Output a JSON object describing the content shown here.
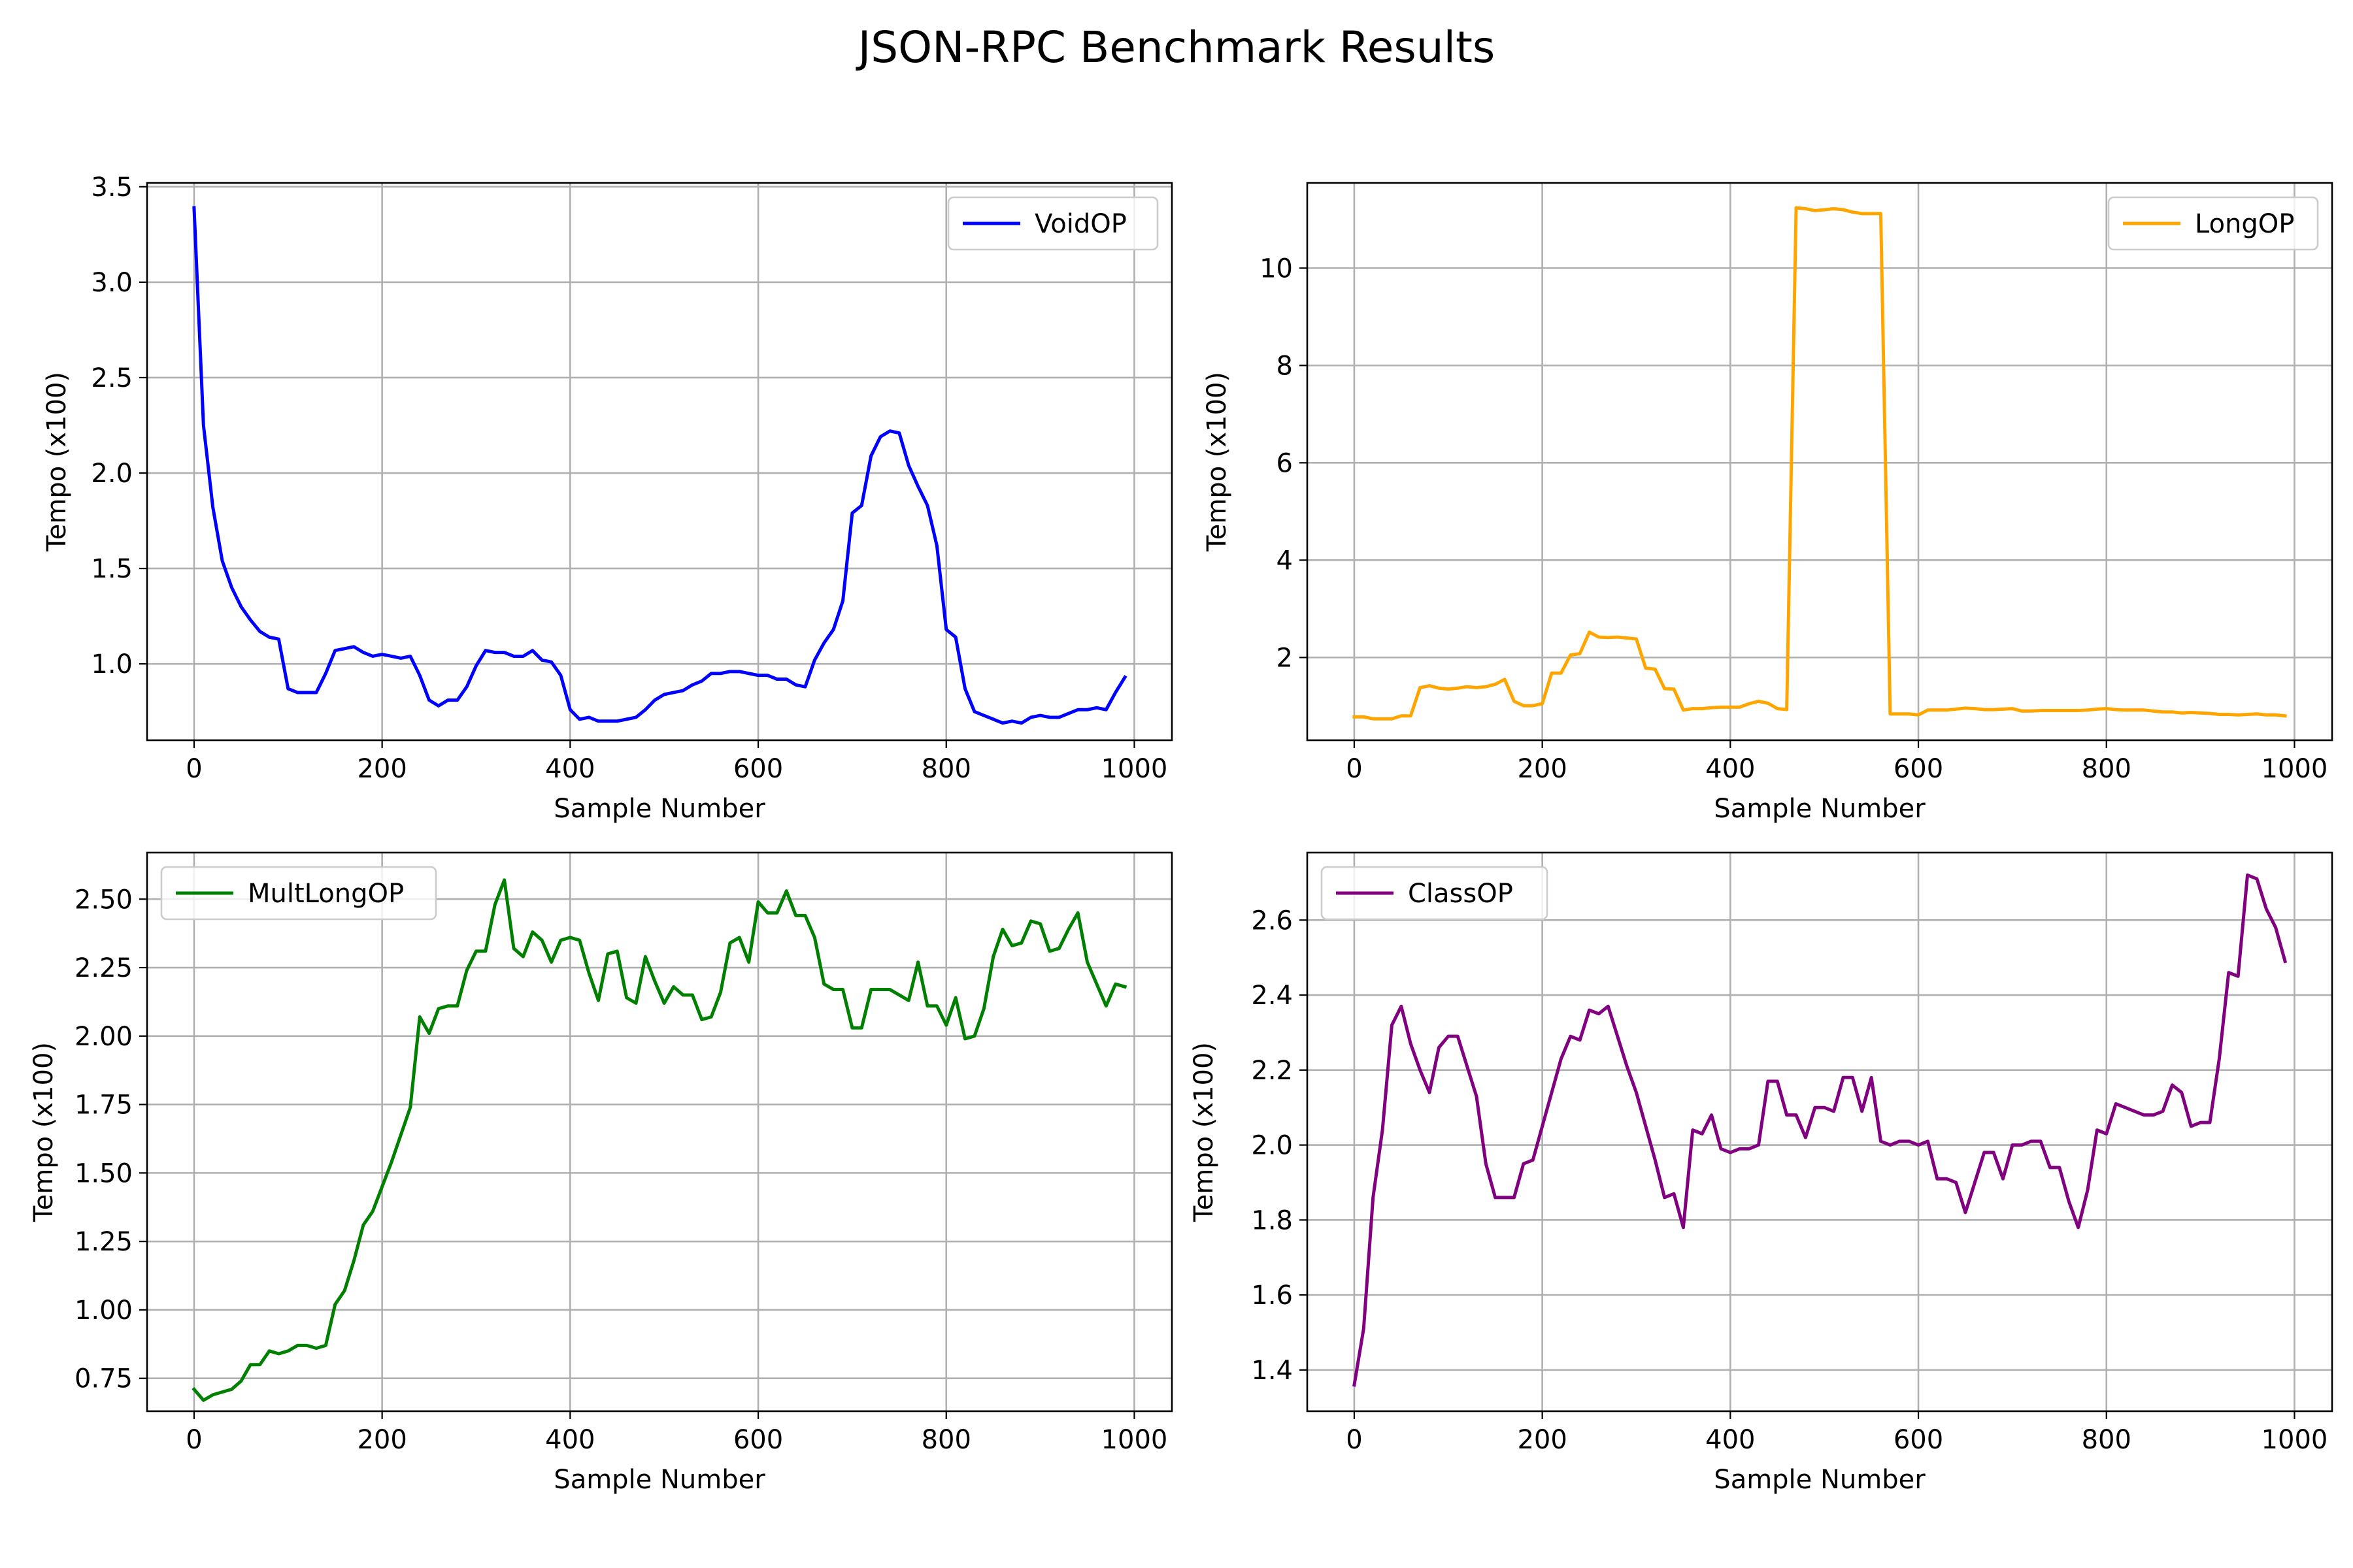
{
  "figure": {
    "title": "JSON-RPC Benchmark Results"
  },
  "chart_data": [
    {
      "type": "line",
      "xlabel": "Sample Number",
      "ylabel": "Tempo (x100)",
      "xlim": [
        -50,
        1040
      ],
      "ylim": [
        0.6,
        3.52
      ],
      "xticks": [
        0,
        200,
        400,
        600,
        800,
        1000
      ],
      "xtick_labels": [
        "0",
        "200",
        "400",
        "600",
        "800",
        "1000"
      ],
      "yticks": [
        1.0,
        1.5,
        2.0,
        2.5,
        3.0,
        3.5
      ],
      "ytick_labels": [
        "1.0",
        "1.5",
        "2.0",
        "2.5",
        "3.0",
        "3.5"
      ],
      "grid": true,
      "legend": "upper right",
      "series": [
        {
          "name": "VoidOP",
          "color": "#0000ff",
          "x": [
            0,
            10,
            20,
            30,
            40,
            50,
            60,
            70,
            80,
            90,
            100,
            110,
            120,
            130,
            140,
            150,
            160,
            170,
            180,
            190,
            200,
            210,
            220,
            230,
            240,
            250,
            260,
            270,
            280,
            290,
            300,
            310,
            320,
            330,
            340,
            350,
            360,
            370,
            380,
            390,
            400,
            410,
            420,
            430,
            440,
            450,
            460,
            470,
            480,
            490,
            500,
            510,
            520,
            530,
            540,
            550,
            560,
            570,
            580,
            590,
            600,
            610,
            620,
            630,
            640,
            650,
            660,
            670,
            680,
            690,
            700,
            710,
            720,
            730,
            740,
            750,
            760,
            770,
            780,
            790,
            800,
            810,
            820,
            830,
            840,
            850,
            860,
            870,
            880,
            890,
            900,
            910,
            920,
            930,
            940,
            950,
            960,
            970,
            980,
            990
          ],
          "y": [
            3.39,
            2.25,
            1.82,
            1.54,
            1.4,
            1.3,
            1.23,
            1.17,
            1.14,
            1.13,
            0.87,
            0.85,
            0.85,
            0.85,
            0.95,
            1.07,
            1.08,
            1.09,
            1.06,
            1.04,
            1.05,
            1.04,
            1.03,
            1.04,
            0.94,
            0.81,
            0.78,
            0.81,
            0.81,
            0.88,
            0.99,
            1.07,
            1.06,
            1.06,
            1.04,
            1.04,
            1.07,
            1.02,
            1.01,
            0.94,
            0.76,
            0.71,
            0.72,
            0.7,
            0.7,
            0.7,
            0.71,
            0.72,
            0.76,
            0.81,
            0.84,
            0.85,
            0.86,
            0.89,
            0.91,
            0.95,
            0.95,
            0.96,
            0.96,
            0.95,
            0.94,
            0.94,
            0.92,
            0.92,
            0.89,
            0.88,
            1.02,
            1.11,
            1.18,
            1.33,
            1.79,
            1.83,
            2.09,
            2.19,
            2.22,
            2.21,
            2.04,
            1.93,
            1.83,
            1.62,
            1.18,
            1.14,
            0.87,
            0.75,
            0.73,
            0.71,
            0.69,
            0.7,
            0.69,
            0.72,
            0.73,
            0.72,
            0.72,
            0.74,
            0.76,
            0.76,
            0.77,
            0.76,
            0.85,
            0.93
          ]
        }
      ]
    },
    {
      "type": "line",
      "xlabel": "Sample Number",
      "ylabel": "Tempo (x100)",
      "xlim": [
        -50,
        1040
      ],
      "ylim": [
        0.3,
        11.75
      ],
      "xticks": [
        0,
        200,
        400,
        600,
        800,
        1000
      ],
      "xtick_labels": [
        "0",
        "200",
        "400",
        "600",
        "800",
        "1000"
      ],
      "yticks": [
        2,
        4,
        6,
        8,
        10
      ],
      "ytick_labels": [
        "2",
        "4",
        "6",
        "8",
        "10"
      ],
      "grid": true,
      "legend": "upper right",
      "series": [
        {
          "name": "LongOP",
          "color": "#ffa500",
          "x": [
            0,
            10,
            20,
            30,
            40,
            50,
            60,
            70,
            80,
            90,
            100,
            110,
            120,
            130,
            140,
            150,
            160,
            170,
            180,
            190,
            200,
            210,
            220,
            230,
            240,
            250,
            260,
            270,
            280,
            290,
            300,
            310,
            320,
            330,
            340,
            350,
            360,
            370,
            380,
            390,
            400,
            410,
            420,
            430,
            440,
            450,
            460,
            470,
            480,
            490,
            500,
            510,
            520,
            530,
            540,
            550,
            560,
            570,
            580,
            590,
            600,
            610,
            620,
            630,
            640,
            650,
            660,
            670,
            680,
            690,
            700,
            710,
            720,
            730,
            740,
            750,
            760,
            770,
            780,
            790,
            800,
            810,
            820,
            830,
            840,
            850,
            860,
            870,
            880,
            890,
            900,
            910,
            920,
            930,
            940,
            950,
            960,
            970,
            980,
            990
          ],
          "y": [
            0.78,
            0.78,
            0.74,
            0.74,
            0.74,
            0.8,
            0.8,
            1.38,
            1.42,
            1.37,
            1.35,
            1.37,
            1.4,
            1.38,
            1.4,
            1.45,
            1.55,
            1.1,
            1.01,
            1.01,
            1.05,
            1.68,
            1.68,
            2.05,
            2.08,
            2.52,
            2.42,
            2.41,
            2.42,
            2.4,
            2.38,
            1.78,
            1.76,
            1.36,
            1.35,
            0.92,
            0.95,
            0.95,
            0.97,
            0.98,
            0.98,
            0.98,
            1.05,
            1.1,
            1.06,
            0.95,
            0.93,
            11.24,
            11.22,
            11.18,
            11.2,
            11.22,
            11.2,
            11.15,
            11.12,
            11.12,
            11.12,
            0.84,
            0.84,
            0.84,
            0.82,
            0.92,
            0.92,
            0.92,
            0.94,
            0.96,
            0.95,
            0.93,
            0.93,
            0.94,
            0.95,
            0.9,
            0.9,
            0.91,
            0.91,
            0.91,
            0.91,
            0.91,
            0.92,
            0.94,
            0.95,
            0.93,
            0.92,
            0.92,
            0.92,
            0.9,
            0.88,
            0.88,
            0.86,
            0.87,
            0.86,
            0.85,
            0.83,
            0.83,
            0.82,
            0.83,
            0.84,
            0.82,
            0.82,
            0.8
          ]
        }
      ]
    },
    {
      "type": "line",
      "xlabel": "Sample Number",
      "ylabel": "Tempo (x100)",
      "xlim": [
        -50,
        1040
      ],
      "ylim": [
        0.63,
        2.67
      ],
      "xticks": [
        0,
        200,
        400,
        600,
        800,
        1000
      ],
      "xtick_labels": [
        "0",
        "200",
        "400",
        "600",
        "800",
        "1000"
      ],
      "yticks": [
        0.75,
        1.0,
        1.25,
        1.5,
        1.75,
        2.0,
        2.25,
        2.5
      ],
      "ytick_labels": [
        "0.75",
        "1.00",
        "1.25",
        "1.50",
        "1.75",
        "2.00",
        "2.25",
        "2.50"
      ],
      "grid": true,
      "legend": "upper left",
      "series": [
        {
          "name": "MultLongOP",
          "color": "#008000",
          "x": [
            0,
            10,
            20,
            30,
            40,
            50,
            60,
            70,
            80,
            90,
            100,
            110,
            120,
            130,
            140,
            150,
            160,
            170,
            180,
            190,
            200,
            210,
            220,
            230,
            240,
            250,
            260,
            270,
            280,
            290,
            300,
            310,
            320,
            330,
            340,
            350,
            360,
            370,
            380,
            390,
            400,
            410,
            420,
            430,
            440,
            450,
            460,
            470,
            480,
            490,
            500,
            510,
            520,
            530,
            540,
            550,
            560,
            570,
            580,
            590,
            600,
            610,
            620,
            630,
            640,
            650,
            660,
            670,
            680,
            690,
            700,
            710,
            720,
            730,
            740,
            750,
            760,
            770,
            780,
            790,
            800,
            810,
            820,
            830,
            840,
            850,
            860,
            870,
            880,
            890,
            900,
            910,
            920,
            930,
            940,
            950,
            960,
            970,
            980,
            990
          ],
          "y": [
            0.71,
            0.67,
            0.69,
            0.7,
            0.71,
            0.74,
            0.8,
            0.8,
            0.85,
            0.84,
            0.85,
            0.87,
            0.87,
            0.86,
            0.87,
            1.02,
            1.07,
            1.18,
            1.31,
            1.36,
            1.45,
            1.54,
            1.64,
            1.74,
            2.07,
            2.01,
            2.1,
            2.11,
            2.11,
            2.24,
            2.31,
            2.31,
            2.48,
            2.57,
            2.32,
            2.29,
            2.38,
            2.35,
            2.27,
            2.35,
            2.36,
            2.35,
            2.23,
            2.13,
            2.3,
            2.31,
            2.14,
            2.12,
            2.29,
            2.2,
            2.12,
            2.18,
            2.15,
            2.15,
            2.06,
            2.07,
            2.16,
            2.34,
            2.36,
            2.27,
            2.49,
            2.45,
            2.45,
            2.53,
            2.44,
            2.44,
            2.36,
            2.19,
            2.17,
            2.17,
            2.03,
            2.03,
            2.17,
            2.17,
            2.17,
            2.15,
            2.13,
            2.27,
            2.11,
            2.11,
            2.04,
            2.14,
            1.99,
            2.0,
            2.1,
            2.29,
            2.39,
            2.33,
            2.34,
            2.42,
            2.41,
            2.31,
            2.32,
            2.39,
            2.45,
            2.27,
            2.19,
            2.11,
            2.19,
            2.18
          ]
        }
      ]
    },
    {
      "type": "line",
      "xlabel": "Sample Number",
      "ylabel": "Tempo (x100)",
      "xlim": [
        -50,
        1040
      ],
      "ylim": [
        1.29,
        2.78
      ],
      "xticks": [
        0,
        200,
        400,
        600,
        800,
        1000
      ],
      "xtick_labels": [
        "0",
        "200",
        "400",
        "600",
        "800",
        "1000"
      ],
      "yticks": [
        1.4,
        1.6,
        1.8,
        2.0,
        2.2,
        2.4,
        2.6
      ],
      "ytick_labels": [
        "1.4",
        "1.6",
        "1.8",
        "2.0",
        "2.2",
        "2.4",
        "2.6"
      ],
      "grid": true,
      "legend": "upper left",
      "series": [
        {
          "name": "ClassOP",
          "color": "#800080",
          "x": [
            0,
            10,
            20,
            30,
            40,
            50,
            60,
            70,
            80,
            90,
            100,
            110,
            120,
            130,
            140,
            150,
            160,
            170,
            180,
            190,
            200,
            210,
            220,
            230,
            240,
            250,
            260,
            270,
            280,
            290,
            300,
            310,
            320,
            330,
            340,
            350,
            360,
            370,
            380,
            390,
            400,
            410,
            420,
            430,
            440,
            450,
            460,
            470,
            480,
            490,
            500,
            510,
            520,
            530,
            540,
            550,
            560,
            570,
            580,
            590,
            600,
            610,
            620,
            630,
            640,
            650,
            660,
            670,
            680,
            690,
            700,
            710,
            720,
            730,
            740,
            750,
            760,
            770,
            780,
            790,
            800,
            810,
            820,
            830,
            840,
            850,
            860,
            870,
            880,
            890,
            900,
            910,
            920,
            930,
            940,
            950,
            960,
            970,
            980,
            990
          ],
          "y": [
            1.36,
            1.51,
            1.86,
            2.04,
            2.32,
            2.37,
            2.27,
            2.2,
            2.14,
            2.26,
            2.29,
            2.29,
            2.21,
            2.13,
            1.95,
            1.86,
            1.86,
            1.86,
            1.95,
            1.96,
            2.05,
            2.14,
            2.23,
            2.29,
            2.28,
            2.36,
            2.35,
            2.37,
            2.29,
            2.21,
            2.14,
            2.05,
            1.96,
            1.86,
            1.87,
            1.78,
            2.04,
            2.03,
            2.08,
            1.99,
            1.98,
            1.99,
            1.99,
            2.0,
            2.17,
            2.17,
            2.08,
            2.08,
            2.02,
            2.1,
            2.1,
            2.09,
            2.18,
            2.18,
            2.09,
            2.18,
            2.01,
            2.0,
            2.01,
            2.01,
            2.0,
            2.01,
            1.91,
            1.91,
            1.9,
            1.82,
            1.9,
            1.98,
            1.98,
            1.91,
            2.0,
            2.0,
            2.01,
            2.01,
            1.94,
            1.94,
            1.85,
            1.78,
            1.88,
            2.04,
            2.03,
            2.11,
            2.1,
            2.09,
            2.08,
            2.08,
            2.09,
            2.16,
            2.14,
            2.05,
            2.06,
            2.06,
            2.23,
            2.46,
            2.45,
            2.72,
            2.71,
            2.63,
            2.58,
            2.49
          ]
        }
      ]
    }
  ]
}
